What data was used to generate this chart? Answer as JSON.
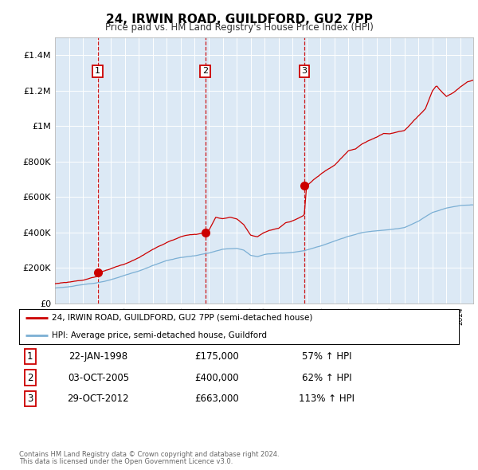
{
  "title": "24, IRWIN ROAD, GUILDFORD, GU2 7PP",
  "subtitle": "Price paid vs. HM Land Registry's House Price Index (HPI)",
  "plot_bg_color": "#dce9f5",
  "ylim": [
    0,
    1500000
  ],
  "yticks": [
    0,
    200000,
    400000,
    600000,
    800000,
    1000000,
    1200000,
    1400000
  ],
  "ytick_labels": [
    "£0",
    "£200K",
    "£400K",
    "£600K",
    "£800K",
    "£1M",
    "£1.2M",
    "£1.4M"
  ],
  "xlim_start": 1995.0,
  "xlim_end": 2024.92,
  "sale_dates": [
    1998.057,
    2005.75,
    2012.83
  ],
  "sale_prices": [
    175000,
    400000,
    663000
  ],
  "sale_labels": [
    "1",
    "2",
    "3"
  ],
  "red_line_color": "#cc0000",
  "blue_line_color": "#7bafd4",
  "legend_label_red": "24, IRWIN ROAD, GUILDFORD, GU2 7PP (semi-detached house)",
  "legend_label_blue": "HPI: Average price, semi-detached house, Guildford",
  "table_rows": [
    [
      "1",
      "22-JAN-1998",
      "£175,000",
      "57% ↑ HPI"
    ],
    [
      "2",
      "03-OCT-2005",
      "£400,000",
      "62% ↑ HPI"
    ],
    [
      "3",
      "29-OCT-2012",
      "£663,000",
      "113% ↑ HPI"
    ]
  ],
  "footnote1": "Contains HM Land Registry data © Crown copyright and database right 2024.",
  "footnote2": "This data is licensed under the Open Government Licence v3.0."
}
